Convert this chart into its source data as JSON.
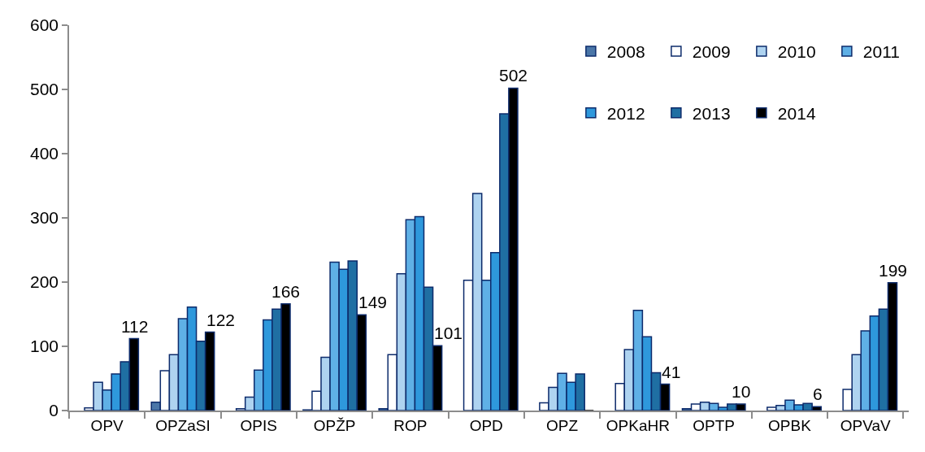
{
  "chart_data": {
    "type": "bar",
    "categories": [
      "OPV",
      "OPZaSI",
      "OPIS",
      "OPŽP",
      "ROP",
      "OPD",
      "OPZ",
      "OPKaHR",
      "OPTP",
      "OPBK",
      "OPVaV"
    ],
    "series": [
      {
        "name": "2008",
        "color": "#4a76a8",
        "values": [
          null,
          13,
          null,
          1,
          3,
          null,
          null,
          null,
          3,
          null,
          null
        ]
      },
      {
        "name": "2009",
        "color": "#ffffff",
        "values": [
          4,
          62,
          3,
          30,
          87,
          203,
          12,
          42,
          10,
          5,
          33
        ]
      },
      {
        "name": "2010",
        "color": "#aed3f0",
        "values": [
          44,
          87,
          21,
          83,
          213,
          338,
          36,
          95,
          13,
          8,
          87
        ]
      },
      {
        "name": "2011",
        "color": "#5fb0e6",
        "values": [
          32,
          143,
          63,
          231,
          297,
          203,
          58,
          156,
          11,
          16,
          124
        ]
      },
      {
        "name": "2012",
        "color": "#2e98dc",
        "values": [
          57,
          161,
          141,
          220,
          302,
          246,
          44,
          115,
          5,
          9,
          147
        ]
      },
      {
        "name": "2013",
        "color": "#1f6fa3",
        "values": [
          76,
          108,
          158,
          233,
          192,
          462,
          57,
          59,
          10,
          11,
          158
        ]
      },
      {
        "name": "2014",
        "color": "#000000",
        "values": [
          112,
          122,
          166,
          149,
          101,
          502,
          0,
          41,
          10,
          6,
          199
        ],
        "value_labels": [
          "112",
          "122",
          "166",
          "149",
          "101",
          "502",
          null,
          "41",
          "10",
          "6",
          "199"
        ]
      }
    ],
    "ylim": [
      0,
      600
    ],
    "yticks": [
      0,
      100,
      200,
      300,
      400,
      500,
      600
    ],
    "legend": "top right"
  }
}
